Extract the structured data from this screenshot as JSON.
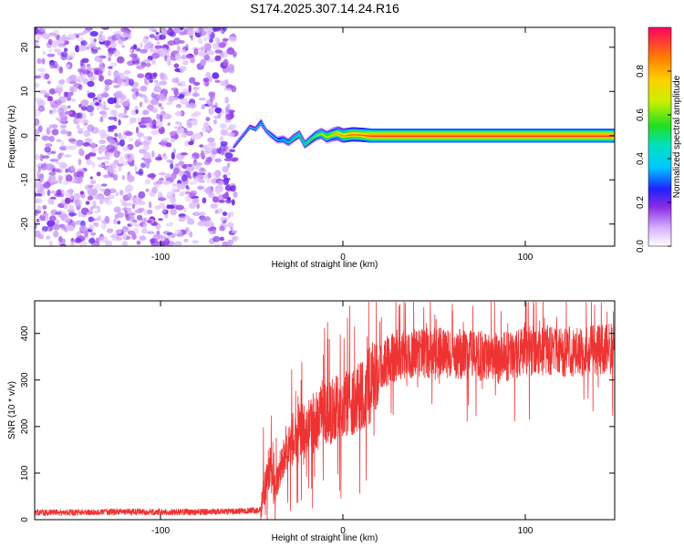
{
  "title": "S174.2025.307.14.24.R16",
  "chart_data": [
    {
      "type": "heatmap",
      "xlabel": "Height of straight line (km)",
      "ylabel": "Frequency (Hz)",
      "xlim": [
        -169,
        149
      ],
      "ylim": [
        -25,
        24.5
      ],
      "xticks": [
        -100,
        0,
        100
      ],
      "yticks": [
        -20,
        -10,
        0,
        10,
        20
      ],
      "noise_region_x": [
        -169,
        -59
      ],
      "ridge": {
        "x": [
          -60,
          -57,
          -54,
          -51,
          -48,
          -45,
          -42,
          -39,
          -36,
          -33,
          -30,
          -27,
          -24,
          -21,
          -18,
          -15,
          -12,
          -9,
          -6,
          -3,
          0,
          5,
          10,
          15,
          20,
          30,
          40,
          60,
          80,
          100,
          120,
          149
        ],
        "freq": [
          -2.5,
          -1.0,
          0.5,
          2.0,
          1.5,
          3.0,
          1.0,
          0.0,
          -1.0,
          -0.8,
          -1.5,
          -0.5,
          0.3,
          -2.0,
          -1.0,
          0.0,
          0.5,
          -0.3,
          0.2,
          0.5,
          0.0,
          0.3,
          0.2,
          0.0,
          0.0,
          0.0,
          0.0,
          0.0,
          0.0,
          0.0,
          0.0,
          0.0
        ],
        "amplitude": [
          0.25,
          0.3,
          0.3,
          0.35,
          0.35,
          0.4,
          0.35,
          0.4,
          0.4,
          0.45,
          0.45,
          0.5,
          0.5,
          0.5,
          0.55,
          0.6,
          0.65,
          0.7,
          0.75,
          0.8,
          0.85,
          0.9,
          0.9,
          0.95,
          0.95,
          0.95,
          0.95,
          0.95,
          0.95,
          0.95,
          0.95,
          0.95
        ]
      },
      "colorbar": {
        "label": "Normalized spectral amplitude",
        "range": [
          0,
          1
        ],
        "ticks": [
          "0.0",
          "0.2",
          "0.4",
          "0.6",
          "0.8"
        ],
        "colormap": "rainbow-white-to-magenta"
      }
    },
    {
      "type": "line",
      "xlabel": "Height of straight line (km)",
      "ylabel": "SNR (10 * v/v)",
      "xlim": [
        -169,
        149
      ],
      "ylim": [
        0,
        470
      ],
      "xticks": [
        -100,
        0,
        100
      ],
      "yticks": [
        0,
        100,
        200,
        300,
        400
      ],
      "series": [
        {
          "name": "SNR",
          "color": "#ee3333",
          "x": [
            -169,
            -140,
            -110,
            -80,
            -60,
            -45,
            -43,
            -40,
            -38,
            -35,
            -30,
            -25,
            -20,
            -15,
            -10,
            -5,
            0,
            5,
            10,
            15,
            20,
            25,
            30,
            40,
            50,
            60,
            70,
            80,
            90,
            100,
            110,
            120,
            130,
            140,
            149
          ],
          "y": [
            15,
            16,
            17,
            16,
            18,
            20,
            70,
            120,
            60,
            110,
            160,
            185,
            195,
            210,
            225,
            235,
            245,
            255,
            270,
            290,
            320,
            345,
            350,
            355,
            360,
            355,
            355,
            350,
            350,
            360,
            365,
            360,
            360,
            365,
            375
          ]
        }
      ]
    }
  ]
}
